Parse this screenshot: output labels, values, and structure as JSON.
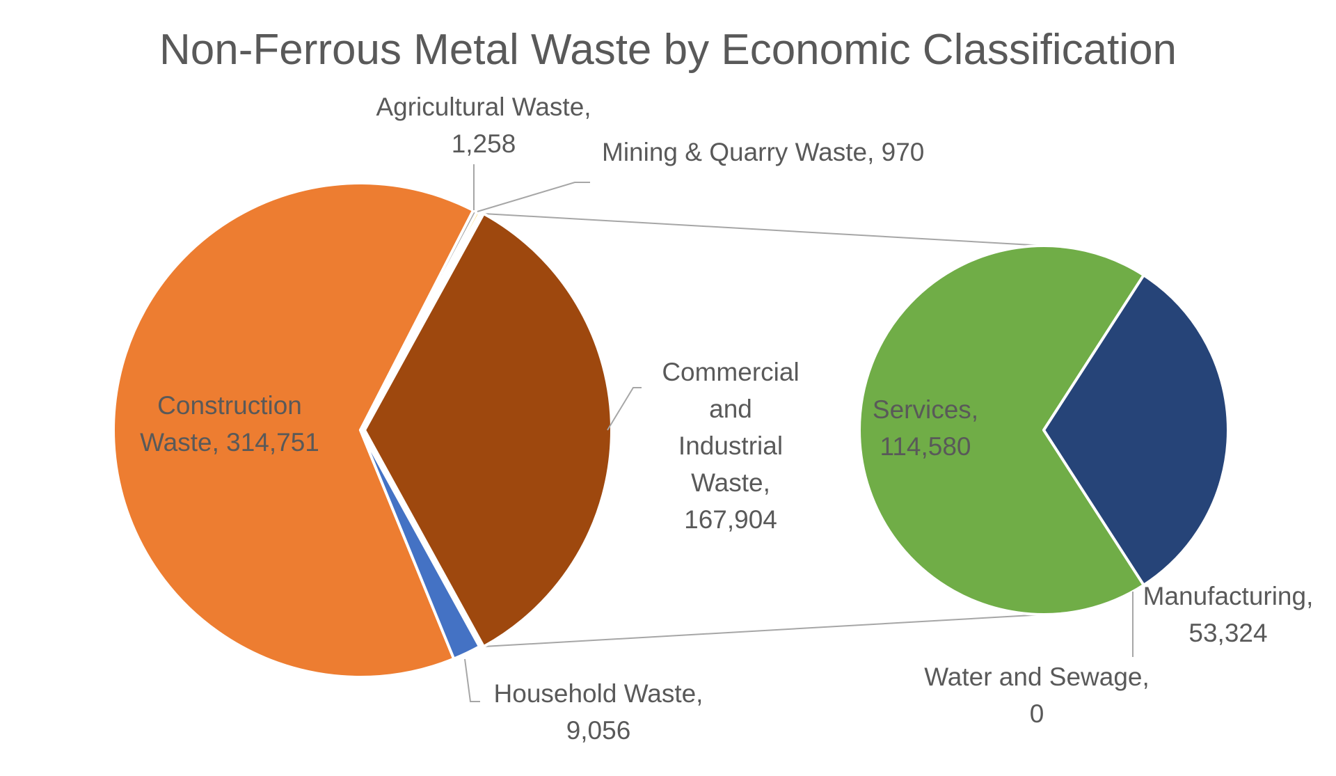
{
  "chart_data": {
    "type": "pie",
    "subtype": "pie-of-pie",
    "title": "Non-Ferrous Metal Waste by Economic Classification",
    "primary": {
      "slices": [
        {
          "name": "Construction Waste",
          "value": 314751,
          "value_label": "314,751",
          "color": "#ED7D31"
        },
        {
          "name": "Agricultural Waste",
          "value": 1258,
          "value_label": "1,258",
          "color": "#A5A5A5"
        },
        {
          "name": "Mining & Quarry Waste",
          "value": 970,
          "value_label": "970",
          "color": "#FFC000"
        },
        {
          "name": "Commercial and Industrial Waste",
          "value": 167904,
          "value_label": "167,904",
          "color": "#9E480E"
        },
        {
          "name": "Household Waste",
          "value": 9056,
          "value_label": "9,056",
          "color": "#4472C4"
        }
      ]
    },
    "secondary": {
      "breakdown_of": "Commercial and Industrial Waste",
      "slices": [
        {
          "name": "Services",
          "value": 114580,
          "value_label": "114,580",
          "color": "#70AD47"
        },
        {
          "name": "Manufacturing",
          "value": 53324,
          "value_label": "53,324",
          "color": "#264478"
        },
        {
          "name": "Water and Sewage",
          "value": 0,
          "value_label": "0",
          "color": "#636363"
        }
      ]
    },
    "labels": {
      "construction": [
        "Construction",
        "Waste, 314,751"
      ],
      "agricultural": [
        "Agricultural Waste,",
        "1,258"
      ],
      "mining": [
        "Mining & Quarry Waste, 970"
      ],
      "commercial": [
        "Commercial",
        "and",
        "Industrial",
        "Waste,",
        "167,904"
      ],
      "household": [
        "Household Waste,",
        "9,056"
      ],
      "services": [
        "Services,",
        "114,580"
      ],
      "manufacturing": [
        "Manufacturing,",
        "53,324"
      ],
      "water": [
        "Water and Sewage,",
        "0"
      ]
    },
    "legend": "none"
  }
}
